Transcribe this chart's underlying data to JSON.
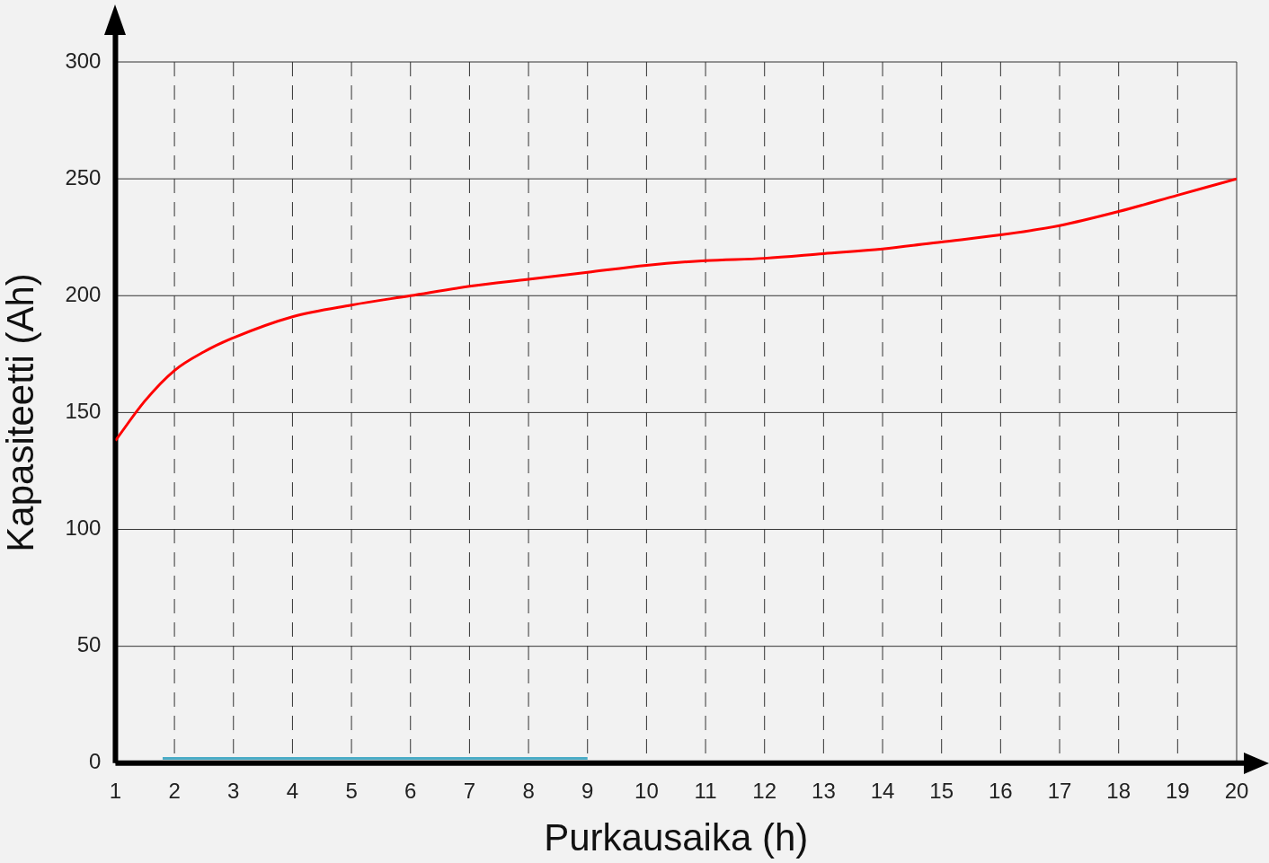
{
  "chart_data": {
    "type": "line",
    "xlabel": "Purkausaika (h)",
    "ylabel": "Kapasiteetti (Ah)",
    "x": [
      1,
      1.5,
      2,
      2.5,
      3,
      4,
      5,
      6,
      7,
      8,
      9,
      10,
      11,
      12,
      13,
      14,
      15,
      16,
      17,
      18,
      19,
      20
    ],
    "series": [
      {
        "color": "#ff0000",
        "values": [
          138,
          155,
          168,
          176,
          182,
          191,
          196,
          200,
          204,
          207,
          210,
          213,
          215,
          216,
          218,
          220,
          223,
          226,
          230,
          236,
          243,
          250
        ]
      },
      {
        "color": "#4bacc6",
        "x": [
          1.8,
          9
        ],
        "values": [
          2,
          2
        ]
      }
    ],
    "xlim": [
      1,
      20
    ],
    "xticks": [
      1,
      2,
      3,
      4,
      5,
      6,
      7,
      8,
      9,
      10,
      11,
      12,
      13,
      14,
      15,
      16,
      17,
      18,
      19,
      20
    ],
    "ylim": [
      0,
      300
    ],
    "yticks": [
      0,
      50,
      100,
      150,
      200,
      250,
      300
    ],
    "grid": true,
    "marker": "none"
  }
}
